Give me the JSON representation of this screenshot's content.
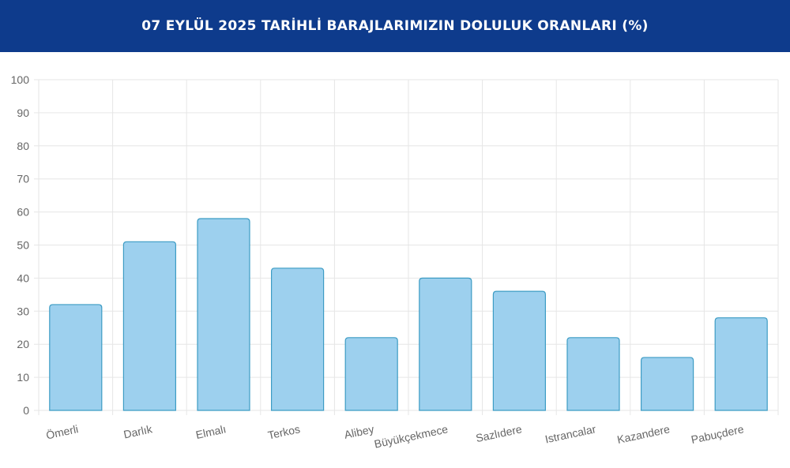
{
  "header": {
    "title": "07 EYLÜL 2025 TARİHLİ BARAJLARIMIZIN DOLULUK ORANLARI (%)"
  },
  "colors": {
    "header_bg": "#0e3b8c",
    "bar_fill": "#9dd0ee",
    "bar_stroke": "#3d9cc4",
    "grid": "#e6e6e6"
  },
  "chart_data": {
    "type": "bar",
    "categories": [
      "Ömerli",
      "Darlık",
      "Elmalı",
      "Terkos",
      "Alibey",
      "Büyükçekmece",
      "Sazlıdere",
      "Istrancalar",
      "Kazandere",
      "Pabuçdere"
    ],
    "values": [
      32,
      51,
      58,
      43,
      22,
      40,
      36,
      22,
      16,
      28
    ],
    "ylim": [
      0,
      100
    ],
    "yticks": [
      0,
      10,
      20,
      30,
      40,
      50,
      60,
      70,
      80,
      90,
      100
    ],
    "grid": true,
    "legend": "none"
  }
}
